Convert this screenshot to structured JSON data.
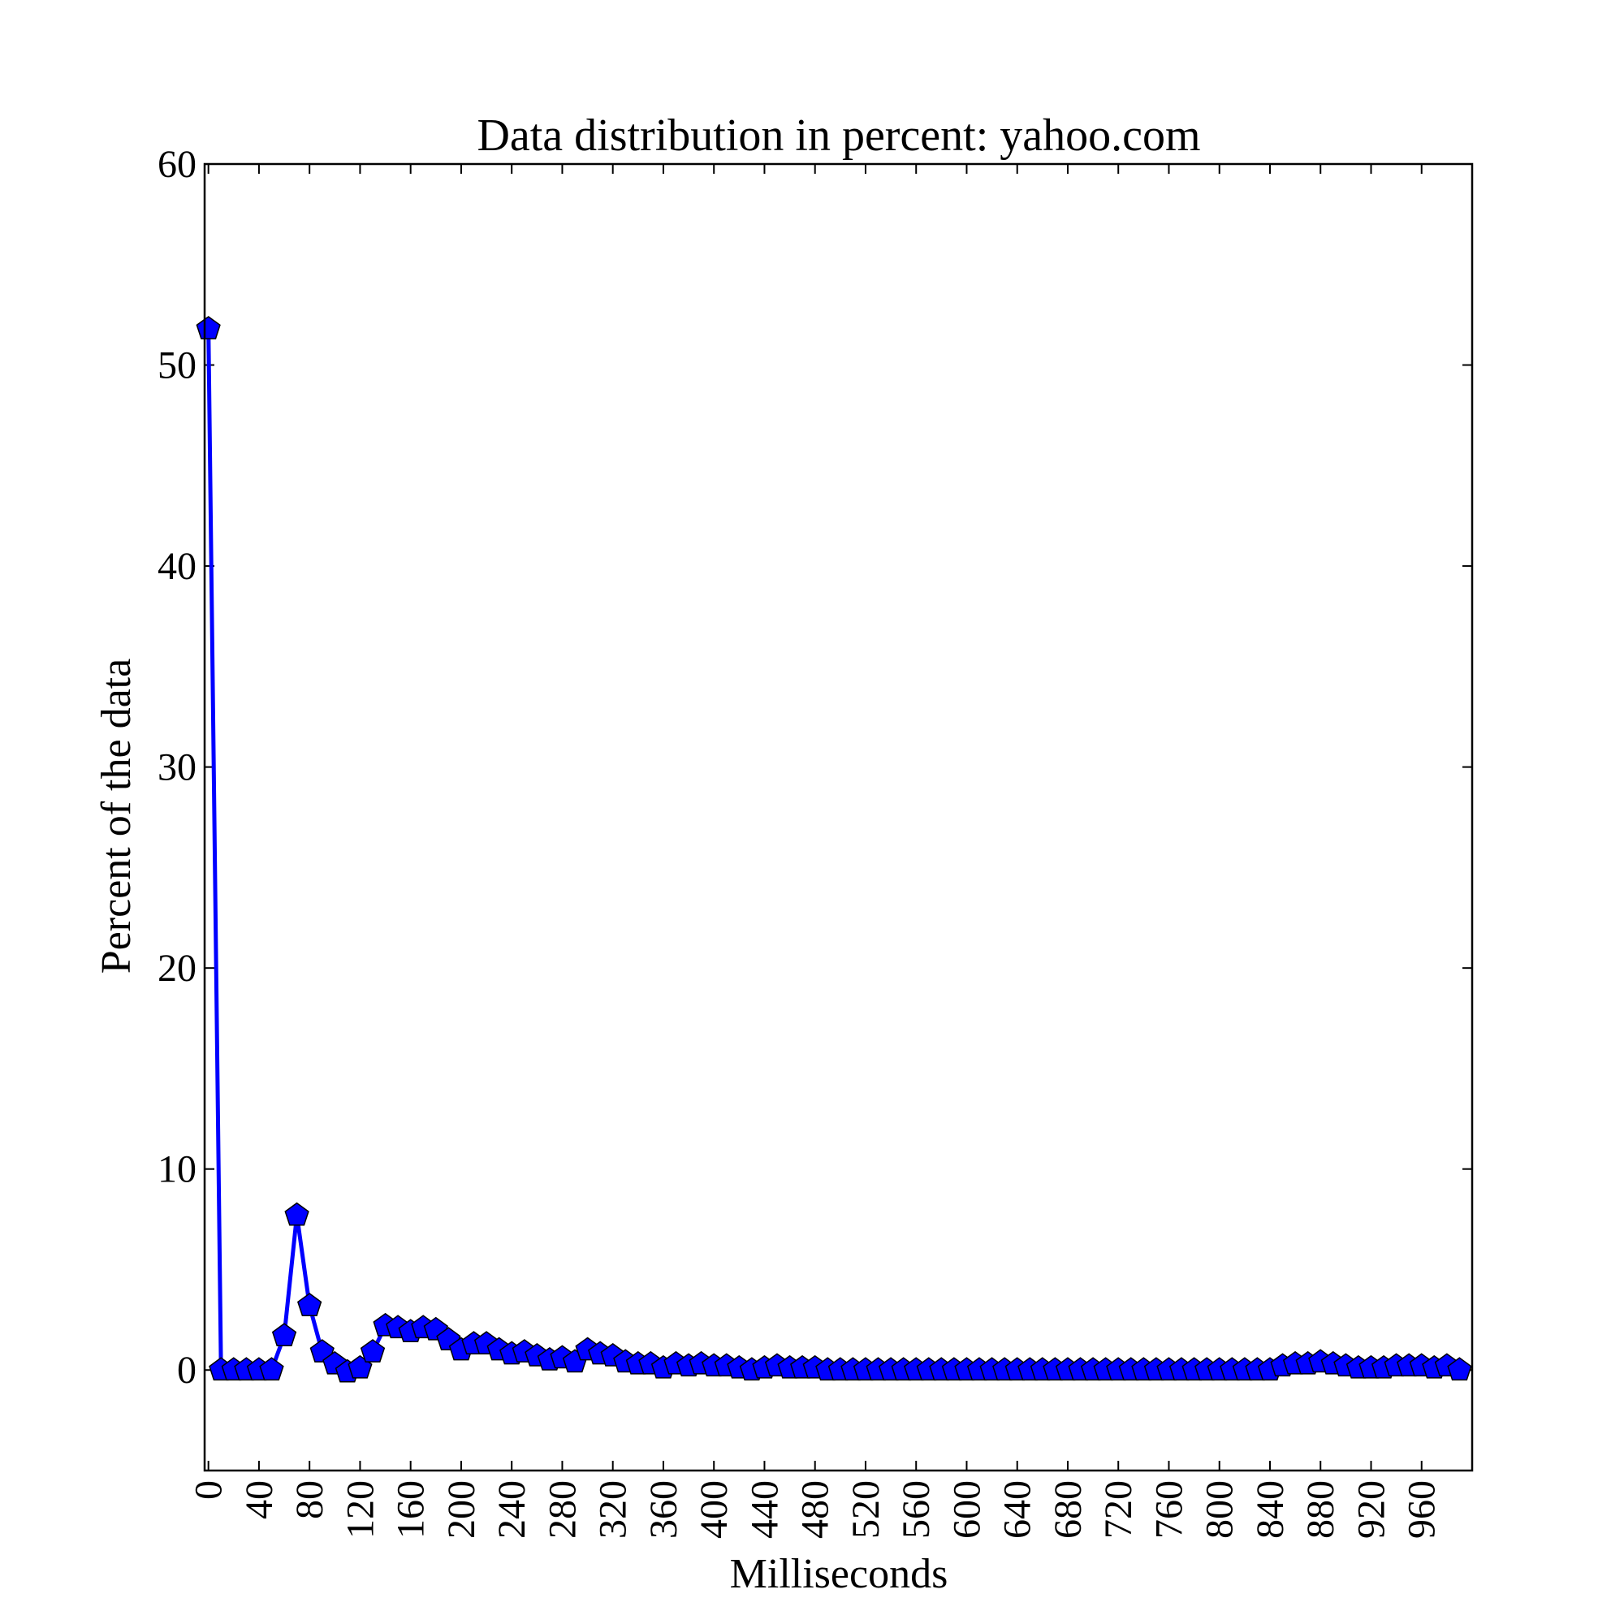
{
  "chart_data": {
    "type": "line",
    "title": "Data distribution in percent: yahoo.com",
    "xlabel": "Milliseconds",
    "ylabel": "Percent of the data",
    "xlim": [
      -3,
      1000
    ],
    "ylim": [
      -5,
      60
    ],
    "x_ticks": [
      0,
      40,
      80,
      120,
      160,
      200,
      240,
      280,
      320,
      360,
      400,
      440,
      480,
      520,
      560,
      600,
      640,
      680,
      720,
      760,
      800,
      840,
      880,
      920,
      960
    ],
    "y_ticks": [
      0,
      10,
      20,
      30,
      40,
      50,
      60
    ],
    "grid": false,
    "colors": {
      "line": "#0000ff",
      "marker_fill": "#0000ff",
      "marker_edge": "#000000"
    },
    "marker": "pentagon",
    "x": [
      0,
      10,
      20,
      30,
      40,
      50,
      60,
      70,
      80,
      90,
      100,
      110,
      120,
      130,
      140,
      150,
      160,
      170,
      180,
      190,
      200,
      210,
      220,
      230,
      240,
      250,
      260,
      270,
      280,
      290,
      300,
      310,
      320,
      330,
      340,
      350,
      360,
      370,
      380,
      390,
      400,
      410,
      420,
      430,
      440,
      450,
      460,
      470,
      480,
      490,
      500,
      510,
      520,
      530,
      540,
      550,
      560,
      570,
      580,
      590,
      600,
      610,
      620,
      630,
      640,
      650,
      660,
      670,
      680,
      690,
      700,
      710,
      720,
      730,
      740,
      750,
      760,
      770,
      780,
      790,
      800,
      810,
      820,
      830,
      840,
      850,
      860,
      870,
      880,
      890,
      900,
      910,
      920,
      930,
      940,
      950,
      960,
      970,
      980,
      990
    ],
    "series": [
      {
        "values": [
          51.8,
          0.0,
          0.0,
          0.0,
          0.0,
          0.0,
          1.7,
          7.7,
          3.2,
          0.9,
          0.3,
          -0.1,
          0.1,
          0.9,
          2.2,
          2.1,
          1.9,
          2.1,
          2.0,
          1.5,
          1.0,
          1.3,
          1.3,
          1.0,
          0.8,
          0.9,
          0.7,
          0.5,
          0.6,
          0.4,
          1.0,
          0.8,
          0.7,
          0.4,
          0.3,
          0.3,
          0.1,
          0.3,
          0.2,
          0.3,
          0.2,
          0.2,
          0.1,
          0.0,
          0.1,
          0.2,
          0.1,
          0.1,
          0.1,
          0.0,
          0.0,
          0.0,
          0.0,
          0.0,
          0.0,
          0.0,
          0.0,
          0.0,
          0.0,
          0.0,
          0.0,
          0.0,
          0.0,
          0.0,
          0.0,
          0.0,
          0.0,
          0.0,
          0.0,
          0.0,
          0.0,
          0.0,
          0.0,
          0.0,
          0.0,
          0.0,
          0.0,
          0.0,
          0.0,
          0.0,
          0.0,
          0.0,
          0.0,
          0.0,
          0.0,
          0.2,
          0.3,
          0.3,
          0.4,
          0.3,
          0.2,
          0.1,
          0.1,
          0.1,
          0.2,
          0.2,
          0.2,
          0.1,
          0.2,
          0.0
        ]
      }
    ]
  }
}
